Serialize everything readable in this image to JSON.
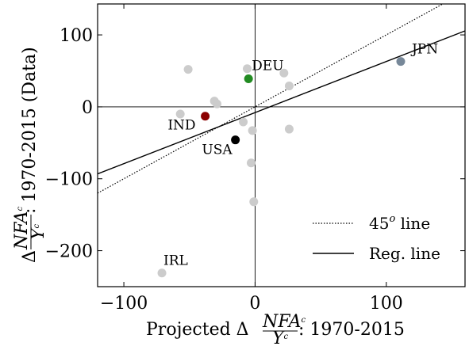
{
  "chart_data": {
    "type": "scatter",
    "xlabel": {
      "prefix": "Projected Δ",
      "frac_num": "NFA",
      "frac_num_sup": "c",
      "frac_den": "Y",
      "frac_den_sup": "c",
      "suffix": ": 1970-2015"
    },
    "ylabel": {
      "prefix": "Δ",
      "frac_num": "NFA",
      "frac_num_sup": "c",
      "frac_den": "Y",
      "frac_den_sup": "c",
      "suffix": ": 1970-2015 (Data)"
    },
    "xlim": [
      -120,
      160
    ],
    "ylim": [
      -250,
      143
    ],
    "xticks": [
      -100,
      0,
      100
    ],
    "yticks": [
      100,
      0,
      -100,
      -200
    ],
    "xtick_labels": [
      "−100",
      "0",
      "100"
    ],
    "ytick_labels": [
      "100",
      "0",
      "−100",
      "−200"
    ],
    "reference_lines": {
      "x": 0,
      "y": 0
    },
    "grid": false,
    "series": [
      {
        "color": "#cccccc",
        "points": [
          {
            "x": -51,
            "y": 52
          },
          {
            "x": -31,
            "y": 8
          },
          {
            "x": -29,
            "y": 4
          },
          {
            "x": -57,
            "y": -10
          },
          {
            "x": -6,
            "y": 53
          },
          {
            "x": 22,
            "y": 47
          },
          {
            "x": 26,
            "y": 29
          },
          {
            "x": -9,
            "y": -21
          },
          {
            "x": -2,
            "y": -33
          },
          {
            "x": 26,
            "y": -31
          },
          {
            "x": -3,
            "y": -78
          },
          {
            "x": -1,
            "y": -132
          },
          {
            "x": -71,
            "y": -231
          }
        ]
      }
    ],
    "highlighted": [
      {
        "label": "DEU",
        "x": -5,
        "y": 39,
        "color": "#228b22"
      },
      {
        "label": "JPN",
        "x": 111,
        "y": 63,
        "color": "#778899"
      },
      {
        "label": "IND",
        "x": -38,
        "y": -13,
        "color": "#8b0000"
      },
      {
        "label": "USA",
        "x": -15,
        "y": -46,
        "color": "#000000"
      },
      {
        "label": "IRL",
        "x": -71,
        "y": -231,
        "color": "#cccccc"
      }
    ],
    "lines": [
      {
        "name": "45ᵒ line",
        "style": "dotted",
        "slope": 1,
        "intercept": 0
      },
      {
        "name": "Reg. line",
        "style": "solid",
        "slope": 0.71,
        "intercept": -8
      }
    ],
    "legend": {
      "position": "bottom-right",
      "items": [
        {
          "text": "45",
          "sup": "o",
          "suffix": " line",
          "style": "dotted"
        },
        {
          "text": "Reg. line",
          "sup": "",
          "suffix": "",
          "style": "solid"
        }
      ]
    }
  }
}
